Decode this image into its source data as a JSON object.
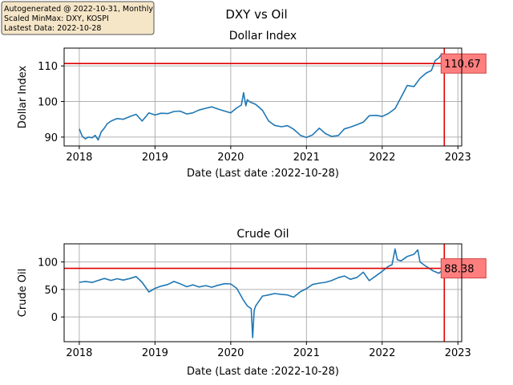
{
  "info_box": {
    "lines": [
      "Autogenerated @ 2022-10-31, Monthly",
      "Scaled MinMax: DXY, KOSPI",
      "Lastest Data: 2022-10-28"
    ]
  },
  "suptitle": "DXY vs Oil",
  "colors": {
    "line": "#1f77b4",
    "marker_line": "#e00000",
    "label_fill": "#ff7f7f",
    "label_edge": "#cc4444",
    "grid": "#b0b0b0",
    "info_bg": "#f5e6c8"
  },
  "chart_data": [
    {
      "type": "line",
      "title": "Dollar Index",
      "xlabel": "Date (Last date :2022-10-28)",
      "ylabel": "Dollar Index",
      "x_range": [
        2017.8,
        2023.05
      ],
      "ylim": [
        87.5,
        115
      ],
      "x_ticks": [
        2018,
        2019,
        2020,
        2021,
        2022,
        2023
      ],
      "x_tick_labels": [
        "2018",
        "2019",
        "2020",
        "2021",
        "2022",
        "2023"
      ],
      "y_ticks": [
        90,
        100,
        110
      ],
      "y_tick_labels": [
        "90",
        "100",
        "110"
      ],
      "grid": true,
      "last_value": 110.67,
      "last_value_label": "110.67",
      "last_date": 2022.82,
      "series": [
        {
          "x": [
            2018.0,
            2018.04,
            2018.08,
            2018.12,
            2018.17,
            2018.21,
            2018.25,
            2018.29,
            2018.33,
            2018.37,
            2018.42,
            2018.5,
            2018.58,
            2018.67,
            2018.75,
            2018.83,
            2018.92,
            2019.0,
            2019.08,
            2019.17,
            2019.25,
            2019.33,
            2019.42,
            2019.5,
            2019.58,
            2019.67,
            2019.75,
            2019.83,
            2019.92,
            2020.0,
            2020.08,
            2020.14,
            2020.17,
            2020.2,
            2020.22,
            2020.25,
            2020.33,
            2020.42,
            2020.5,
            2020.58,
            2020.67,
            2020.75,
            2020.83,
            2020.92,
            2021.0,
            2021.08,
            2021.17,
            2021.25,
            2021.33,
            2021.42,
            2021.5,
            2021.58,
            2021.67,
            2021.75,
            2021.83,
            2021.92,
            2022.0,
            2022.08,
            2022.17,
            2022.25,
            2022.33,
            2022.42,
            2022.5,
            2022.58,
            2022.65,
            2022.7,
            2022.75,
            2022.79,
            2022.82
          ],
          "y": [
            92.3,
            90.2,
            89.5,
            90.0,
            89.8,
            90.5,
            89.2,
            91.5,
            92.5,
            93.8,
            94.5,
            95.2,
            95.0,
            95.8,
            96.4,
            94.5,
            96.8,
            96.2,
            96.7,
            96.6,
            97.2,
            97.3,
            96.5,
            96.8,
            97.6,
            98.1,
            98.5,
            97.9,
            97.3,
            96.8,
            98.2,
            99.0,
            102.5,
            98.8,
            100.5,
            99.9,
            99.2,
            97.5,
            94.5,
            93.3,
            92.9,
            93.2,
            92.2,
            90.5,
            89.9,
            90.6,
            92.5,
            91.0,
            90.2,
            90.4,
            92.3,
            92.8,
            93.5,
            94.2,
            96.0,
            96.1,
            95.8,
            96.6,
            98.0,
            101.2,
            104.5,
            104.2,
            106.5,
            108.0,
            108.7,
            111.5,
            112.3,
            113.5,
            110.67
          ]
        }
      ]
    },
    {
      "type": "line",
      "title": "Crude Oil",
      "xlabel": "Date (Last date :2022-10-28)",
      "ylabel": "Crude Oil",
      "x_range": [
        2017.8,
        2023.05
      ],
      "ylim": [
        -45,
        133
      ],
      "x_ticks": [
        2018,
        2019,
        2020,
        2021,
        2022,
        2023
      ],
      "x_tick_labels": [
        "2018",
        "2019",
        "2020",
        "2021",
        "2022",
        "2023"
      ],
      "y_ticks": [
        0,
        50,
        100
      ],
      "y_tick_labels": [
        "0",
        "50",
        "100"
      ],
      "grid": true,
      "last_value": 88.38,
      "last_value_label": "88.38",
      "last_date": 2022.82,
      "series": [
        {
          "x": [
            2018.0,
            2018.08,
            2018.17,
            2018.25,
            2018.33,
            2018.42,
            2018.5,
            2018.58,
            2018.67,
            2018.75,
            2018.83,
            2018.92,
            2019.0,
            2019.08,
            2019.17,
            2019.25,
            2019.33,
            2019.42,
            2019.5,
            2019.58,
            2019.67,
            2019.75,
            2019.83,
            2019.92,
            2020.0,
            2020.08,
            2020.17,
            2020.22,
            2020.27,
            2020.29,
            2020.31,
            2020.33,
            2020.42,
            2020.5,
            2020.58,
            2020.67,
            2020.75,
            2020.83,
            2020.92,
            2021.0,
            2021.08,
            2021.17,
            2021.25,
            2021.33,
            2021.42,
            2021.5,
            2021.58,
            2021.67,
            2021.75,
            2021.83,
            2021.92,
            2022.0,
            2022.08,
            2022.13,
            2022.17,
            2022.2,
            2022.25,
            2022.33,
            2022.42,
            2022.47,
            2022.5,
            2022.58,
            2022.67,
            2022.75,
            2022.79,
            2022.82
          ],
          "y": [
            63.0,
            64.5,
            62.8,
            66.5,
            70.0,
            66.5,
            69.5,
            67.0,
            70.0,
            73.5,
            63.0,
            45.5,
            52.0,
            56.0,
            59.0,
            64.5,
            60.5,
            55.0,
            58.5,
            54.5,
            57.0,
            54.0,
            57.5,
            60.5,
            60.0,
            52.0,
            30.0,
            20.0,
            15.0,
            -37.6,
            12.0,
            20.0,
            38.0,
            40.0,
            42.5,
            41.0,
            40.0,
            36.0,
            46.0,
            51.5,
            59.0,
            61.5,
            63.0,
            66.0,
            71.5,
            74.5,
            68.5,
            72.0,
            81.5,
            66.0,
            75.0,
            83.0,
            92.0,
            95.0,
            123.7,
            104.0,
            102.0,
            110.0,
            114.0,
            122.0,
            100.0,
            92.0,
            84.0,
            79.5,
            85.0,
            88.38
          ]
        }
      ]
    }
  ]
}
